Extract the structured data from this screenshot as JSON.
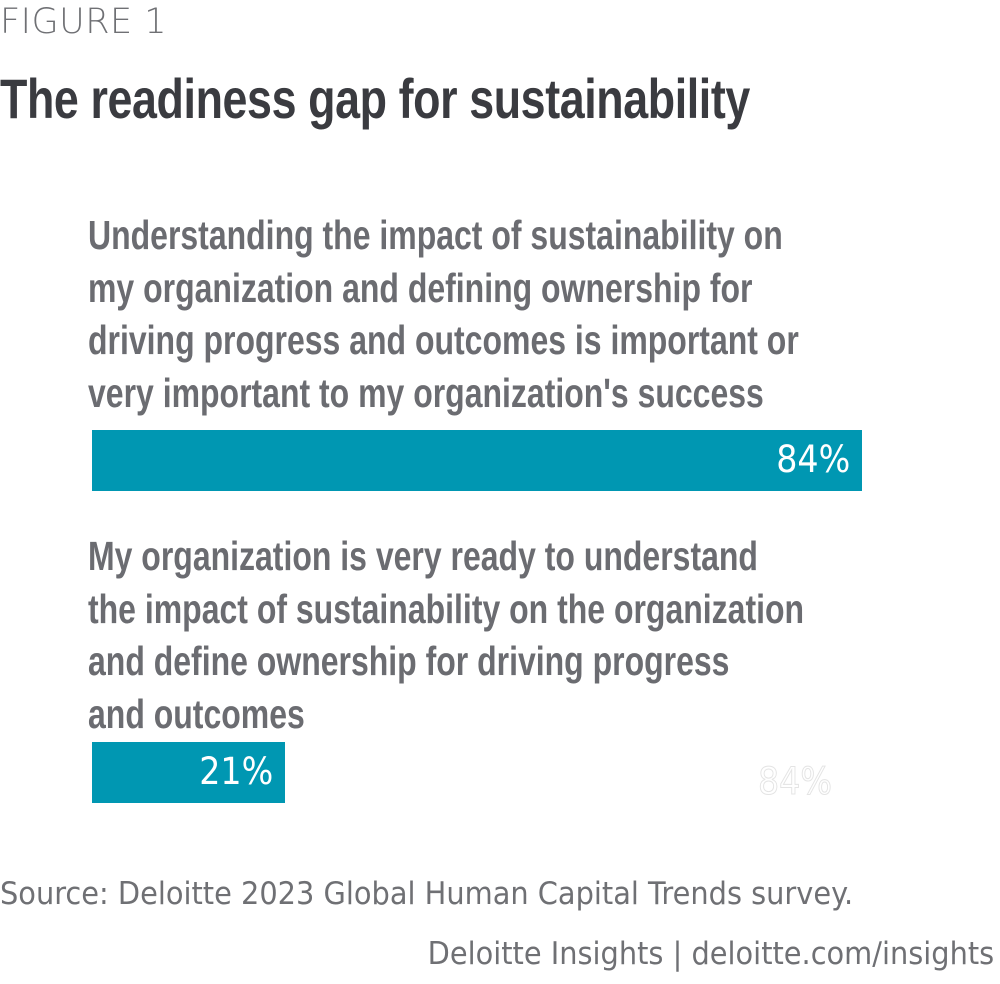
{
  "figure_label": "FIGURE 1",
  "chart_data": {
    "type": "bar",
    "orientation": "horizontal",
    "title": "The readiness gap for sustainability",
    "categories": [
      "Understanding the impact of sustainability on my organization and defining ownership for driving progress and outcomes is important or very important to my organization's success",
      "My organization is very ready to understand the impact of sustainability on the organization and define ownership for driving progress and outcomes"
    ],
    "category_lines": [
      [
        "Understanding the impact of sustainability on",
        "my organization and defining ownership for",
        "driving progress and outcomes is important or",
        "very important to my organization's success"
      ],
      [
        "My organization is very ready to understand",
        "the impact of sustainability on the organization",
        "and define ownership for driving progress",
        "and outcomes"
      ]
    ],
    "values": [
      84,
      21
    ],
    "value_labels": [
      "84%",
      "21%"
    ],
    "unit": "%",
    "xlim": [
      0,
      100
    ],
    "xlabel": "",
    "ylabel": "",
    "grid": false,
    "legend": "none",
    "bar_color": "#0097b2",
    "artifact_text": "84%"
  },
  "source": "Source: Deloitte 2023 Global Human Capital Trends survey.",
  "credit": "Deloitte Insights | deloitte.com/insights"
}
